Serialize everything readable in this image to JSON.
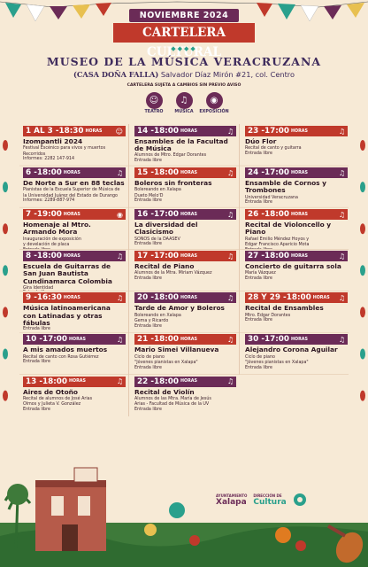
{
  "header": {
    "month": "NOVIEMBRE 2024",
    "title": "CARTELERA CULTURAL",
    "diamonds": "◆◆◆◆",
    "museum": "MUSEO DE LA MÚSICA VERACRUZANA",
    "house": "(CASA DOÑA FALLA)",
    "address": "Salvador Díaz Mirón #21, col. Centro",
    "notice": "CARTELERA SUJETA A CAMBIOS SIN PREVIO AVISO"
  },
  "categories": [
    {
      "label": "TEATRO",
      "icon": "theater-masks-icon",
      "glyph": "☺"
    },
    {
      "label": "MÚSICA",
      "icon": "music-note-icon",
      "glyph": "♫"
    },
    {
      "label": "EXPOSICIÓN",
      "icon": "camera-icon",
      "glyph": "◉"
    }
  ],
  "hours_label": "HORAS",
  "events": [
    {
      "date": "1 AL 3",
      "time": "18:30",
      "icon": "theater",
      "color": "red",
      "title": "Izompantli 2024",
      "desc": [
        "Festival Escénico para vivos y muertos",
        "Recorridos"
      ],
      "price": "Informes: 2282 147-914"
    },
    {
      "date": "14",
      "time": "18:00",
      "icon": "music",
      "color": "purple",
      "title": "Ensambles de la Facultad de Música",
      "desc": [
        "Alumnos de Mtro. Edgar Dorantes"
      ],
      "price": "Entrada libre"
    },
    {
      "date": "23",
      "time": "17:00",
      "icon": "music",
      "color": "red",
      "title": "Dúo Flor",
      "desc": [
        "Recital de canto y guitarra"
      ],
      "price": "Entrada libre"
    },
    {
      "date": "6",
      "time": "18:00",
      "icon": "music",
      "color": "purple",
      "title": "De Norte a Sur en 88 teclas",
      "desc": [
        "Pianistas de la Escuela Superior de Música de",
        "la Universidad Juárez del Estado de Durango"
      ],
      "price": "Informes: 2289-887-974"
    },
    {
      "date": "15",
      "time": "18:00",
      "icon": "music",
      "color": "red",
      "title": "Boleros sin fronteras",
      "desc": [
        "Bolereando en Xalapa",
        "Dueto Melo'D"
      ],
      "price": "Entrada libre"
    },
    {
      "date": "24",
      "time": "17:00",
      "icon": "music",
      "color": "purple",
      "title": "Ensamble de Cornos y Trombones",
      "desc": [
        "Universidad Veracruzana"
      ],
      "price": "Entrada libre"
    },
    {
      "date": "7",
      "time": "19:00",
      "icon": "camera",
      "color": "red",
      "title": "Homenaje al Mtro. Armando Mora",
      "desc": [
        "Inauguración de exposición",
        "y develación de placa"
      ],
      "price": "Entrada libre"
    },
    {
      "date": "16",
      "time": "17:00",
      "icon": "music",
      "color": "purple",
      "title": "La diversidad del Clasicismo",
      "desc": [
        "SONOS de la DAASEV"
      ],
      "price": "Entrada libre"
    },
    {
      "date": "26",
      "time": "18:00",
      "icon": "music",
      "color": "red",
      "title": "Recital de Violoncello y Piano",
      "desc": [
        "Rafael Emilio Méndez Hoyos y",
        "Edgar Francisco Aparicio Mota"
      ],
      "price": "Entrada libre"
    },
    {
      "date": "8",
      "time": "18:00",
      "icon": "music",
      "color": "purple",
      "title": "Escuela de Guitarras de San Juan Bautista Cundinamarca Colombia",
      "desc": [
        "Gira Identidad"
      ],
      "price": "Entrada libre"
    },
    {
      "date": "17",
      "time": "17:00",
      "icon": "music",
      "color": "red",
      "title": "Recital de Piano",
      "desc": [
        "Alumnos de la Mtra. Miriam Vázquez"
      ],
      "price": "Entrada libre"
    },
    {
      "date": "27",
      "time": "18:00",
      "icon": "music",
      "color": "purple",
      "title": "Concierto de guitarra sola",
      "desc": [
        "María Vázquez"
      ],
      "price": "Entrada libre"
    },
    {
      "date": "9",
      "time": "16:30",
      "icon": "music",
      "color": "red",
      "title": "Música latinoamericana con Latinadas y otras fábulas",
      "desc": [],
      "price": "Entrada libre"
    },
    {
      "date": "20",
      "time": "18:00",
      "icon": "music",
      "color": "purple",
      "title": "Tarde de Amor y Boleros",
      "desc": [
        "Bolereando en Xalapa",
        "Gema y Ricardo"
      ],
      "price": "Entrada libre"
    },
    {
      "date": "28 Y 29",
      "time": "18:00",
      "icon": "music",
      "color": "red",
      "title": "Recital de Ensambles",
      "desc": [
        "Mtro. Edgar Dorantes"
      ],
      "price": "Entrada libre"
    },
    {
      "date": "10",
      "time": "17:00",
      "icon": "music",
      "color": "purple",
      "title": "A mis amados muertos",
      "desc": [
        "Recital de canto con Rosa Gutiérrez"
      ],
      "price": "Entrada libre"
    },
    {
      "date": "21",
      "time": "18:00",
      "icon": "music",
      "color": "red",
      "title": "Mario Simei Villanueva",
      "desc": [
        "Ciclo de piano",
        "\"Jóvenes pianistas en Xalapa\""
      ],
      "price": "Entrada libre"
    },
    {
      "date": "30",
      "time": "17:00",
      "icon": "music",
      "color": "purple",
      "title": "Alejandro Corona Aguilar",
      "desc": [
        "Ciclo de piano",
        "\"Jóvenes pianistas en Xalapa\""
      ],
      "price": "Entrada libre"
    },
    {
      "date": "13",
      "time": "18:00",
      "icon": "music",
      "color": "red",
      "title": "Aires de Otoño",
      "desc": [
        "Recital de alumnos de José Arias",
        "Olmos y Julieta V. González"
      ],
      "price": "Entrada libre"
    },
    {
      "date": "22",
      "time": "18:00",
      "icon": "music",
      "color": "purple",
      "title": "Recital de Violín",
      "desc": [
        "Alumnos de las Mtra. María de Jesús",
        "Arias - Facultad de Música de la UV"
      ],
      "price": "Entrada libre"
    }
  ],
  "logos": {
    "xalapa": "Xalapa",
    "xalapa_sub": "AYUNTAMIENTO",
    "cultura": "Cultura",
    "cultura_sub": "DIRECCIÓN DE"
  },
  "colors": {
    "purple": "#6b2b57",
    "red": "#c0392b",
    "teal": "#2aa08c",
    "bg": "#f7ead6"
  }
}
